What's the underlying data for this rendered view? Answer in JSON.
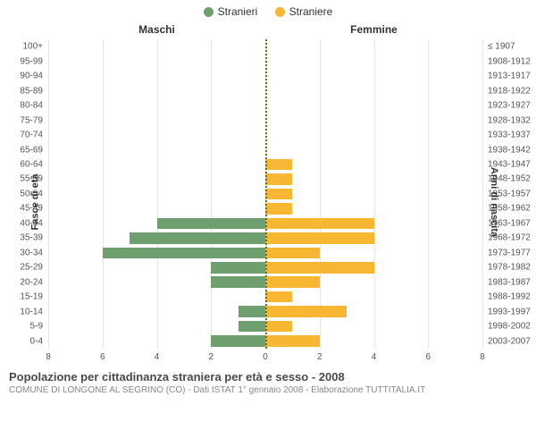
{
  "legend": {
    "male": {
      "label": "Stranieri",
      "color": "#6f9e6f"
    },
    "female": {
      "label": "Straniere",
      "color": "#f7b733"
    }
  },
  "headers": {
    "left": "Maschi",
    "right": "Femmine"
  },
  "axis": {
    "y_left_title": "Fasce di età",
    "y_right_title": "Anni di nascita",
    "xmax": 8,
    "xticks": [
      8,
      6,
      4,
      2,
      0,
      2,
      4,
      6,
      8
    ],
    "grid_color": "#e6e6e6",
    "center_line_color": "#7a6a00"
  },
  "colors": {
    "male_bar": "#6f9e6f",
    "female_bar": "#f7b733",
    "background": "#ffffff",
    "text": "#333333"
  },
  "rows": [
    {
      "age": "100+",
      "year": "≤ 1907",
      "m": 0,
      "f": 0
    },
    {
      "age": "95-99",
      "year": "1908-1912",
      "m": 0,
      "f": 0
    },
    {
      "age": "90-94",
      "year": "1913-1917",
      "m": 0,
      "f": 0
    },
    {
      "age": "85-89",
      "year": "1918-1922",
      "m": 0,
      "f": 0
    },
    {
      "age": "80-84",
      "year": "1923-1927",
      "m": 0,
      "f": 0
    },
    {
      "age": "75-79",
      "year": "1928-1932",
      "m": 0,
      "f": 0
    },
    {
      "age": "70-74",
      "year": "1933-1937",
      "m": 0,
      "f": 0
    },
    {
      "age": "65-69",
      "year": "1938-1942",
      "m": 0,
      "f": 0
    },
    {
      "age": "60-64",
      "year": "1943-1947",
      "m": 0,
      "f": 1
    },
    {
      "age": "55-59",
      "year": "1948-1952",
      "m": 0,
      "f": 1
    },
    {
      "age": "50-54",
      "year": "1953-1957",
      "m": 0,
      "f": 1
    },
    {
      "age": "45-49",
      "year": "1958-1962",
      "m": 0,
      "f": 1
    },
    {
      "age": "40-44",
      "year": "1963-1967",
      "m": 4,
      "f": 4
    },
    {
      "age": "35-39",
      "year": "1968-1972",
      "m": 5,
      "f": 4
    },
    {
      "age": "30-34",
      "year": "1973-1977",
      "m": 6,
      "f": 2
    },
    {
      "age": "25-29",
      "year": "1978-1982",
      "m": 2,
      "f": 4
    },
    {
      "age": "20-24",
      "year": "1983-1987",
      "m": 2,
      "f": 2
    },
    {
      "age": "15-19",
      "year": "1988-1992",
      "m": 0,
      "f": 1
    },
    {
      "age": "10-14",
      "year": "1993-1997",
      "m": 1,
      "f": 3
    },
    {
      "age": "5-9",
      "year": "1998-2002",
      "m": 1,
      "f": 1
    },
    {
      "age": "0-4",
      "year": "2003-2007",
      "m": 2,
      "f": 2
    }
  ],
  "footer": {
    "title": "Popolazione per cittadinanza straniera per età e sesso - 2008",
    "subtitle": "COMUNE DI LONGONE AL SEGRINO (CO) - Dati ISTAT 1° gennaio 2008 - Elaborazione TUTTITALIA.IT"
  },
  "chart_type": "population-pyramid"
}
